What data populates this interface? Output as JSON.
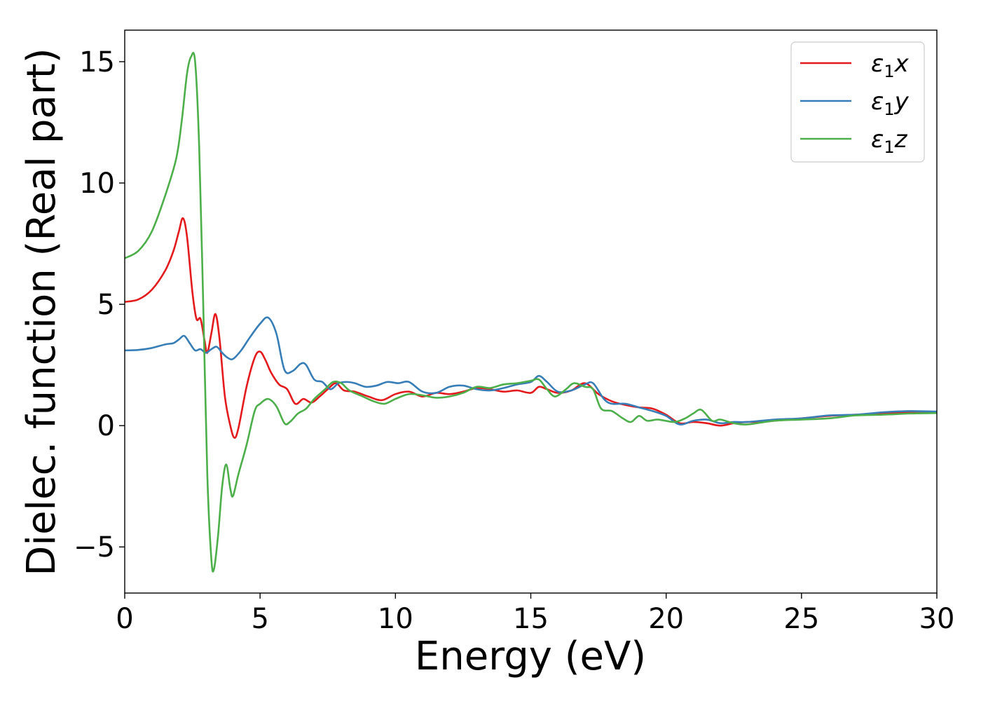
{
  "chart_data": {
    "type": "line",
    "title": "",
    "xlabel": "Energy (eV)",
    "ylabel": "Dielec. function (Real part)",
    "xlim": [
      0,
      30
    ],
    "ylim": [
      -6.9,
      16.3
    ],
    "xticks": [
      0,
      5,
      10,
      15,
      20,
      25,
      30
    ],
    "xtick_labels": [
      "0",
      "5",
      "10",
      "15",
      "20",
      "25",
      "30"
    ],
    "yticks": [
      -5,
      0,
      5,
      10,
      15
    ],
    "ytick_labels": [
      "−5",
      "0",
      "5",
      "10",
      "15"
    ],
    "grid": false,
    "legend_position": "upper-right",
    "series": [
      {
        "name": "ε1x",
        "legend_label": {
          "base": "ε",
          "sub": "1",
          "suffix": "x"
        },
        "color": "#e41a1c",
        "points": [
          [
            0,
            5.1
          ],
          [
            0.5,
            5.2
          ],
          [
            1.0,
            5.6
          ],
          [
            1.5,
            6.4
          ],
          [
            1.8,
            7.2
          ],
          [
            2.0,
            8.0
          ],
          [
            2.15,
            8.55
          ],
          [
            2.3,
            7.8
          ],
          [
            2.5,
            5.5
          ],
          [
            2.65,
            4.4
          ],
          [
            2.8,
            4.4
          ],
          [
            2.95,
            3.5
          ],
          [
            3.05,
            3.0
          ],
          [
            3.2,
            3.8
          ],
          [
            3.35,
            4.6
          ],
          [
            3.5,
            3.6
          ],
          [
            3.7,
            1.2
          ],
          [
            3.9,
            0.0
          ],
          [
            4.05,
            -0.5
          ],
          [
            4.2,
            -0.1
          ],
          [
            4.5,
            1.6
          ],
          [
            4.8,
            2.8
          ],
          [
            5.0,
            3.05
          ],
          [
            5.2,
            2.7
          ],
          [
            5.4,
            2.2
          ],
          [
            5.7,
            1.7
          ],
          [
            6.0,
            1.5
          ],
          [
            6.3,
            0.9
          ],
          [
            6.6,
            1.1
          ],
          [
            6.9,
            0.95
          ],
          [
            7.2,
            1.2
          ],
          [
            7.5,
            1.5
          ],
          [
            7.8,
            1.75
          ],
          [
            8.1,
            1.45
          ],
          [
            8.5,
            1.4
          ],
          [
            9.0,
            1.2
          ],
          [
            9.5,
            1.05
          ],
          [
            10.0,
            1.3
          ],
          [
            10.5,
            1.4
          ],
          [
            11.0,
            1.2
          ],
          [
            11.5,
            1.35
          ],
          [
            12.0,
            1.3
          ],
          [
            12.5,
            1.4
          ],
          [
            13.0,
            1.55
          ],
          [
            13.5,
            1.5
          ],
          [
            14.0,
            1.4
          ],
          [
            14.5,
            1.45
          ],
          [
            15.0,
            1.35
          ],
          [
            15.3,
            1.6
          ],
          [
            15.6,
            1.5
          ],
          [
            16.0,
            1.35
          ],
          [
            16.5,
            1.45
          ],
          [
            17.0,
            1.75
          ],
          [
            17.5,
            1.3
          ],
          [
            18.0,
            1.0
          ],
          [
            18.5,
            0.85
          ],
          [
            19.0,
            0.75
          ],
          [
            19.5,
            0.7
          ],
          [
            20.0,
            0.45
          ],
          [
            20.5,
            0.1
          ],
          [
            21.0,
            0.15
          ],
          [
            21.5,
            0.1
          ],
          [
            22.0,
            0.0
          ],
          [
            22.5,
            0.1
          ],
          [
            23.0,
            0.15
          ],
          [
            23.5,
            0.15
          ],
          [
            24.0,
            0.2
          ],
          [
            25.0,
            0.3
          ],
          [
            26.0,
            0.4
          ],
          [
            27.0,
            0.45
          ],
          [
            28.0,
            0.5
          ],
          [
            29.0,
            0.55
          ],
          [
            30.0,
            0.55
          ]
        ]
      },
      {
        "name": "ε1y",
        "legend_label": {
          "base": "ε",
          "sub": "1",
          "suffix": "y"
        },
        "color": "#377eb8",
        "points": [
          [
            0,
            3.1
          ],
          [
            0.5,
            3.12
          ],
          [
            1.0,
            3.2
          ],
          [
            1.5,
            3.35
          ],
          [
            1.8,
            3.4
          ],
          [
            2.0,
            3.55
          ],
          [
            2.2,
            3.7
          ],
          [
            2.4,
            3.4
          ],
          [
            2.6,
            3.1
          ],
          [
            2.8,
            3.15
          ],
          [
            3.0,
            3.0
          ],
          [
            3.2,
            3.15
          ],
          [
            3.4,
            3.25
          ],
          [
            3.6,
            3.0
          ],
          [
            3.8,
            2.8
          ],
          [
            4.0,
            2.75
          ],
          [
            4.3,
            3.1
          ],
          [
            4.6,
            3.6
          ],
          [
            5.0,
            4.2
          ],
          [
            5.3,
            4.45
          ],
          [
            5.6,
            3.8
          ],
          [
            5.9,
            2.3
          ],
          [
            6.2,
            2.25
          ],
          [
            6.5,
            2.55
          ],
          [
            6.7,
            2.5
          ],
          [
            7.0,
            1.9
          ],
          [
            7.3,
            1.8
          ],
          [
            7.6,
            1.5
          ],
          [
            7.9,
            1.75
          ],
          [
            8.2,
            1.8
          ],
          [
            8.5,
            1.75
          ],
          [
            8.9,
            1.6
          ],
          [
            9.3,
            1.65
          ],
          [
            9.7,
            1.8
          ],
          [
            10.1,
            1.75
          ],
          [
            10.5,
            1.8
          ],
          [
            11.0,
            1.4
          ],
          [
            11.5,
            1.35
          ],
          [
            12.0,
            1.6
          ],
          [
            12.5,
            1.65
          ],
          [
            13.0,
            1.5
          ],
          [
            13.5,
            1.45
          ],
          [
            14.0,
            1.55
          ],
          [
            14.5,
            1.7
          ],
          [
            15.0,
            1.8
          ],
          [
            15.3,
            2.05
          ],
          [
            15.6,
            1.8
          ],
          [
            16.0,
            1.4
          ],
          [
            16.5,
            1.45
          ],
          [
            17.0,
            1.7
          ],
          [
            17.3,
            1.75
          ],
          [
            17.7,
            1.1
          ],
          [
            18.0,
            0.9
          ],
          [
            18.5,
            0.9
          ],
          [
            19.0,
            0.75
          ],
          [
            19.5,
            0.6
          ],
          [
            20.0,
            0.4
          ],
          [
            20.5,
            0.05
          ],
          [
            21.0,
            0.2
          ],
          [
            21.5,
            0.25
          ],
          [
            22.0,
            0.1
          ],
          [
            22.5,
            0.15
          ],
          [
            23.0,
            0.15
          ],
          [
            24.0,
            0.25
          ],
          [
            25.0,
            0.3
          ],
          [
            26.0,
            0.42
          ],
          [
            27.0,
            0.45
          ],
          [
            28.0,
            0.55
          ],
          [
            29.0,
            0.6
          ],
          [
            30.0,
            0.58
          ]
        ]
      },
      {
        "name": "ε1z",
        "legend_label": {
          "base": "ε",
          "sub": "1",
          "suffix": "z"
        },
        "color": "#4daf4a",
        "points": [
          [
            0,
            6.9
          ],
          [
            0.5,
            7.2
          ],
          [
            1.0,
            8.0
          ],
          [
            1.5,
            9.5
          ],
          [
            1.9,
            11.0
          ],
          [
            2.1,
            12.5
          ],
          [
            2.3,
            14.5
          ],
          [
            2.45,
            15.2
          ],
          [
            2.6,
            15.0
          ],
          [
            2.75,
            11.5
          ],
          [
            2.9,
            5.0
          ],
          [
            3.05,
            -2.0
          ],
          [
            3.2,
            -5.5
          ],
          [
            3.3,
            -5.9
          ],
          [
            3.45,
            -4.5
          ],
          [
            3.6,
            -2.5
          ],
          [
            3.75,
            -1.6
          ],
          [
            3.9,
            -2.6
          ],
          [
            4.0,
            -2.9
          ],
          [
            4.2,
            -2.0
          ],
          [
            4.5,
            -0.8
          ],
          [
            4.8,
            0.6
          ],
          [
            5.0,
            0.9
          ],
          [
            5.3,
            1.1
          ],
          [
            5.6,
            0.8
          ],
          [
            5.9,
            0.1
          ],
          [
            6.1,
            0.15
          ],
          [
            6.4,
            0.5
          ],
          [
            6.7,
            0.7
          ],
          [
            7.0,
            1.1
          ],
          [
            7.4,
            1.5
          ],
          [
            7.7,
            1.8
          ],
          [
            8.0,
            1.75
          ],
          [
            8.3,
            1.45
          ],
          [
            8.8,
            1.2
          ],
          [
            9.2,
            1.0
          ],
          [
            9.6,
            0.9
          ],
          [
            10.0,
            1.1
          ],
          [
            10.5,
            1.3
          ],
          [
            11.0,
            1.25
          ],
          [
            11.5,
            1.15
          ],
          [
            12.0,
            1.2
          ],
          [
            12.5,
            1.35
          ],
          [
            13.0,
            1.6
          ],
          [
            13.5,
            1.55
          ],
          [
            14.0,
            1.7
          ],
          [
            14.5,
            1.75
          ],
          [
            15.0,
            1.85
          ],
          [
            15.3,
            1.9
          ],
          [
            15.6,
            1.5
          ],
          [
            15.9,
            1.2
          ],
          [
            16.3,
            1.5
          ],
          [
            16.6,
            1.75
          ],
          [
            17.0,
            1.6
          ],
          [
            17.3,
            1.5
          ],
          [
            17.6,
            0.7
          ],
          [
            18.0,
            0.6
          ],
          [
            18.4,
            0.3
          ],
          [
            18.7,
            0.15
          ],
          [
            19.0,
            0.4
          ],
          [
            19.3,
            0.2
          ],
          [
            19.7,
            0.25
          ],
          [
            20.3,
            0.15
          ],
          [
            20.7,
            0.3
          ],
          [
            21.0,
            0.5
          ],
          [
            21.3,
            0.65
          ],
          [
            21.7,
            0.2
          ],
          [
            22.0,
            0.25
          ],
          [
            22.5,
            0.1
          ],
          [
            23.0,
            0.05
          ],
          [
            24.0,
            0.2
          ],
          [
            25.0,
            0.25
          ],
          [
            26.0,
            0.3
          ],
          [
            27.0,
            0.42
          ],
          [
            28.0,
            0.45
          ],
          [
            29.0,
            0.5
          ],
          [
            30.0,
            0.52
          ]
        ]
      }
    ]
  }
}
